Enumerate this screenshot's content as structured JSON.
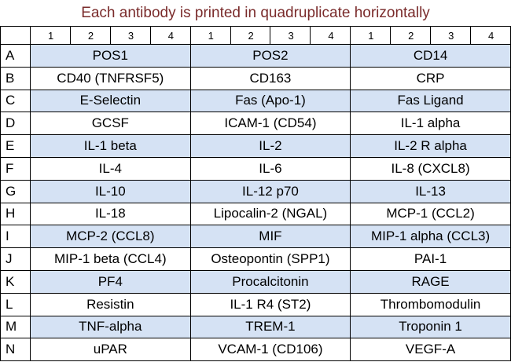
{
  "title": "Each antibody is printed in quadruplicate horizontally",
  "column_groups": [
    [
      1,
      2,
      3,
      4
    ],
    [
      1,
      2,
      3,
      4
    ],
    [
      1,
      2,
      3,
      4
    ]
  ],
  "rows": [
    {
      "label": "A",
      "cells": [
        "POS1",
        "POS2",
        "CD14"
      ]
    },
    {
      "label": "B",
      "cells": [
        "CD40 (TNFRSF5)",
        "CD163",
        "CRP"
      ]
    },
    {
      "label": "C",
      "cells": [
        "E-Selectin",
        "Fas (Apo-1)",
        "Fas Ligand"
      ]
    },
    {
      "label": "D",
      "cells": [
        "GCSF",
        "ICAM-1 (CD54)",
        "IL-1 alpha"
      ]
    },
    {
      "label": "E",
      "cells": [
        "IL-1 beta",
        "IL-2",
        "IL-2 R alpha"
      ]
    },
    {
      "label": "F",
      "cells": [
        "IL-4",
        "IL-6",
        "IL-8 (CXCL8)"
      ]
    },
    {
      "label": "G",
      "cells": [
        "IL-10",
        "IL-12 p70",
        "IL-13"
      ]
    },
    {
      "label": "H",
      "cells": [
        "IL-18",
        "Lipocalin-2 (NGAL)",
        "MCP-1 (CCL2)"
      ]
    },
    {
      "label": "I",
      "cells": [
        "MCP-2 (CCL8)",
        "MIF",
        "MIP-1 alpha (CCL3)"
      ]
    },
    {
      "label": "J",
      "cells": [
        "MIP-1 beta (CCL4)",
        "Osteopontin (SPP1)",
        "PAI-1"
      ]
    },
    {
      "label": "K",
      "cells": [
        "PF4",
        "Procalcitonin",
        "RAGE"
      ]
    },
    {
      "label": "L",
      "cells": [
        "Resistin",
        "IL-1 R4 (ST2)",
        "Thrombomodulin"
      ]
    },
    {
      "label": "M",
      "cells": [
        "TNF-alpha",
        "TREM-1",
        "Troponin 1"
      ]
    },
    {
      "label": "N",
      "cells": [
        "uPAR",
        "VCAM-1 (CD106)",
        "VEGF-A"
      ]
    }
  ]
}
